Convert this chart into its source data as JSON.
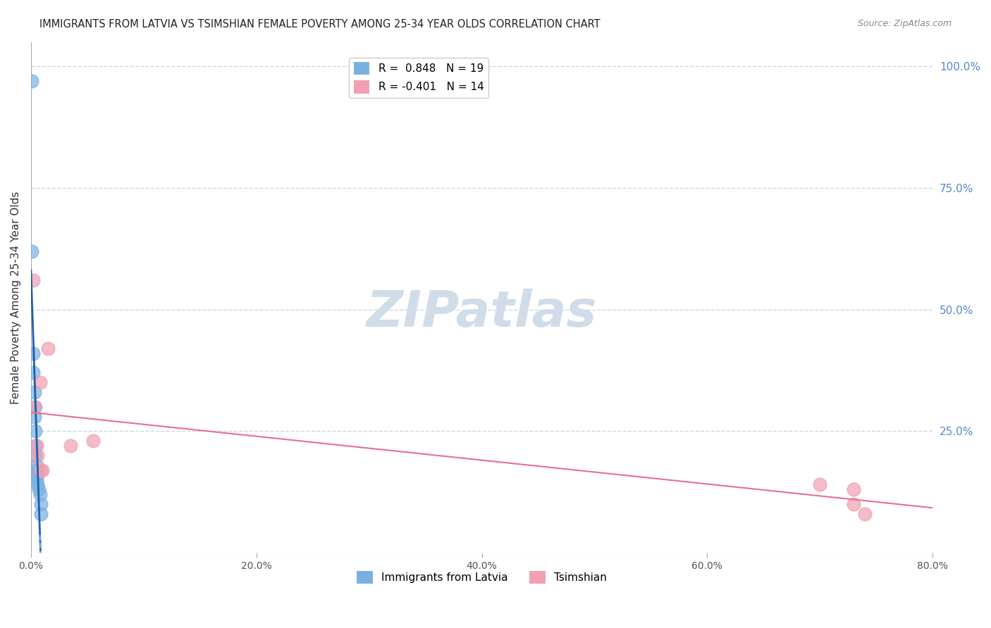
{
  "title": "IMMIGRANTS FROM LATVIA VS TSIMSHIAN FEMALE POVERTY AMONG 25-34 YEAR OLDS CORRELATION CHART",
  "source": "Source: ZipAtlas.com",
  "ylabel": "Female Poverty Among 25-34 Year Olds",
  "xlabel": "",
  "xlim": [
    0.0,
    0.8
  ],
  "ylim": [
    0.0,
    1.05
  ],
  "xtick_labels": [
    "0.0%",
    "20.0%",
    "40.0%",
    "60.0%",
    "80.0%"
  ],
  "xtick_vals": [
    0.0,
    0.2,
    0.4,
    0.6,
    0.8
  ],
  "ytick_labels_right": [
    "100.0%",
    "75.0%",
    "50.0%",
    "25.0%"
  ],
  "ytick_vals_right": [
    1.0,
    0.75,
    0.5,
    0.25
  ],
  "grid_color": "#c8d8e8",
  "background_color": "#ffffff",
  "title_fontsize": 11,
  "source_fontsize": 9,
  "watermark_text": "ZIPatlas",
  "watermark_color": "#d0dde8",
  "latvia_color": "#7ab0e0",
  "tsimshian_color": "#f0a0b0",
  "latvia_R": 0.848,
  "latvia_N": 19,
  "tsimshian_R": -0.401,
  "tsimshian_N": 14,
  "legend_label_latvia": "Immigrants from Latvia",
  "legend_label_tsimshian": "Tsimshian",
  "latvia_x": [
    0.001,
    0.001,
    0.002,
    0.002,
    0.003,
    0.003,
    0.003,
    0.004,
    0.004,
    0.004,
    0.005,
    0.005,
    0.005,
    0.005,
    0.006,
    0.007,
    0.008,
    0.009,
    0.009
  ],
  "latvia_y": [
    0.97,
    0.62,
    0.41,
    0.37,
    0.33,
    0.3,
    0.28,
    0.25,
    0.22,
    0.2,
    0.18,
    0.17,
    0.16,
    0.15,
    0.14,
    0.13,
    0.12,
    0.1,
    0.08
  ],
  "tsimshian_x": [
    0.002,
    0.004,
    0.005,
    0.006,
    0.008,
    0.009,
    0.01,
    0.015,
    0.035,
    0.055,
    0.7,
    0.73,
    0.73,
    0.74
  ],
  "tsimshian_y": [
    0.56,
    0.3,
    0.22,
    0.2,
    0.35,
    0.17,
    0.17,
    0.42,
    0.22,
    0.23,
    0.14,
    0.1,
    0.13,
    0.08
  ]
}
